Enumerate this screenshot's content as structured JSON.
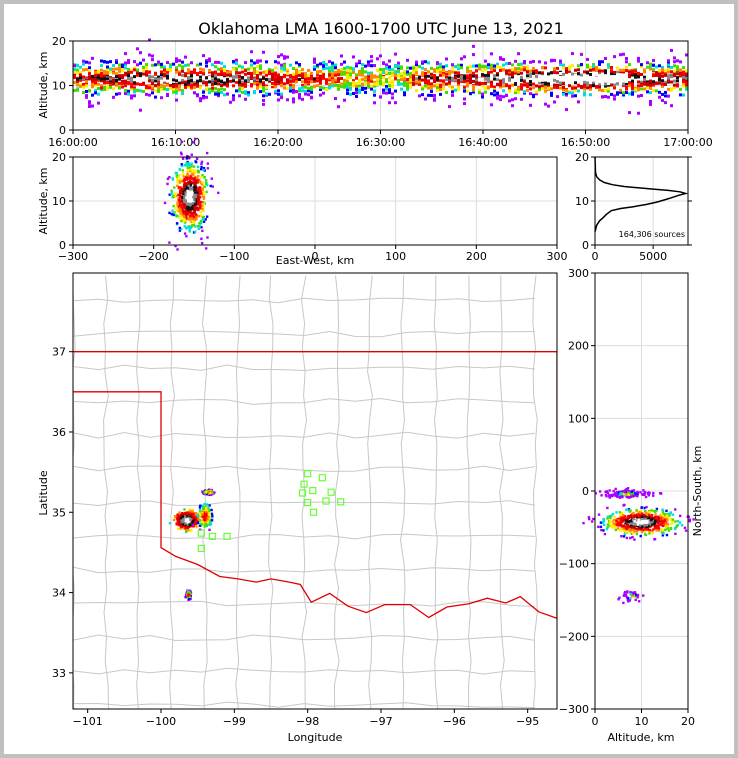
{
  "chart_data": [
    {
      "panel": "time-height",
      "type": "heatmap",
      "title": "Oklahoma LMA 1600-1700 UTC June 13, 2021",
      "xlabel": "",
      "ylabel": "Altitude, km",
      "x_ticks": [
        "16:00:00",
        "16:10:00",
        "16:20:00",
        "16:30:00",
        "16:40:00",
        "16:50:00",
        "17:00:00"
      ],
      "xlim": [
        "16:00:00",
        "17:00:00"
      ],
      "y_ticks": [
        0,
        10,
        20
      ],
      "ylim": [
        0,
        20
      ],
      "density_core_altitude_km": [
        7,
        14
      ],
      "density_peak_altitude_km": 11.5
    },
    {
      "panel": "east-west-vs-altitude",
      "type": "heatmap",
      "xlabel": "East-West, km",
      "ylabel": "Altitude, km",
      "x_ticks": [
        -300,
        -200,
        -100,
        0,
        100,
        200,
        300
      ],
      "xlim": [
        -300,
        300
      ],
      "y_ticks": [
        0,
        10,
        20
      ],
      "ylim": [
        0,
        20
      ],
      "clusters": [
        {
          "x_range_km": [
            -175,
            -125
          ],
          "z_range_km": [
            2,
            20
          ],
          "peak": [
            -155,
            11
          ]
        }
      ]
    },
    {
      "panel": "altitude-histogram",
      "type": "line",
      "annotation": "164,306 sources",
      "x_ticks": [
        0,
        5000
      ],
      "xlim": [
        0,
        8000
      ],
      "y_ticks": [
        0,
        10,
        20
      ],
      "ylim": [
        0,
        20
      ],
      "points": [
        [
          0,
          3.0
        ],
        [
          150,
          4.5
        ],
        [
          400,
          5.5
        ],
        [
          700,
          6.2
        ],
        [
          1000,
          7.0
        ],
        [
          1400,
          7.8
        ],
        [
          2200,
          8.3
        ],
        [
          3300,
          8.7
        ],
        [
          4400,
          9.2
        ],
        [
          5400,
          9.8
        ],
        [
          6400,
          10.6
        ],
        [
          7200,
          11.3
        ],
        [
          7800,
          11.7
        ],
        [
          7300,
          12.1
        ],
        [
          6300,
          12.4
        ],
        [
          5000,
          12.7
        ],
        [
          3700,
          13.0
        ],
        [
          2500,
          13.3
        ],
        [
          1500,
          13.7
        ],
        [
          800,
          14.2
        ],
        [
          400,
          14.8
        ],
        [
          150,
          15.5
        ],
        [
          40,
          16.5
        ],
        [
          0,
          20.0
        ]
      ]
    },
    {
      "panel": "plan-view-map",
      "type": "scatter",
      "xlabel": "Longitude",
      "ylabel": "Latitude",
      "x_ticks": [
        -101,
        -100,
        -99,
        -98,
        -97,
        -96,
        -95
      ],
      "xlim": [
        -101.2,
        -94.6
      ],
      "y_ticks": [
        33,
        34,
        35,
        36,
        37
      ],
      "ylim": [
        32.55,
        37.98
      ],
      "clusters": [
        {
          "lon": -99.65,
          "lat": 34.9,
          "spread": [
            0.12,
            0.08
          ],
          "peak": true
        },
        {
          "lon": -99.4,
          "lat": 34.95,
          "spread": [
            0.08,
            0.12
          ]
        },
        {
          "lon": -99.35,
          "lat": 35.25,
          "spread": [
            0.05,
            0.02
          ]
        },
        {
          "lon": -99.62,
          "lat": 33.97,
          "spread": [
            0.02,
            0.04
          ]
        }
      ],
      "stations": [
        [
          -98.0,
          35.48
        ],
        [
          -97.8,
          35.43
        ],
        [
          -98.05,
          35.35
        ],
        [
          -98.07,
          35.24
        ],
        [
          -97.93,
          35.27
        ],
        [
          -97.68,
          35.25
        ],
        [
          -98.0,
          35.12
        ],
        [
          -97.92,
          35.0
        ],
        [
          -97.75,
          35.14
        ],
        [
          -97.55,
          35.13
        ],
        [
          -99.45,
          34.74
        ],
        [
          -99.3,
          34.7
        ],
        [
          -99.1,
          34.7
        ],
        [
          -99.45,
          34.55
        ]
      ]
    },
    {
      "panel": "altitude-vs-north-south",
      "type": "heatmap",
      "xlabel": "Altitude, km",
      "ylabel": "North-South, km",
      "x_ticks": [
        0,
        10,
        20
      ],
      "xlim": [
        0,
        20
      ],
      "y_ticks": [
        -300,
        -200,
        -100,
        0,
        100,
        200,
        300
      ],
      "ylim": [
        -300,
        300
      ],
      "clusters": [
        {
          "z_range_km": [
            2,
            20
          ],
          "y_range_km": [
            -65,
            -30
          ],
          "peak": [
            10,
            -43
          ]
        },
        {
          "z_range_km": [
            4,
            14
          ],
          "y_range_km": [
            -10,
            0
          ],
          "peak": [
            7,
            -4
          ]
        },
        {
          "z_range_km": [
            6,
            11
          ],
          "y_range_km": [
            -155,
            -140
          ],
          "peak": [
            8,
            -145
          ]
        }
      ]
    }
  ]
}
